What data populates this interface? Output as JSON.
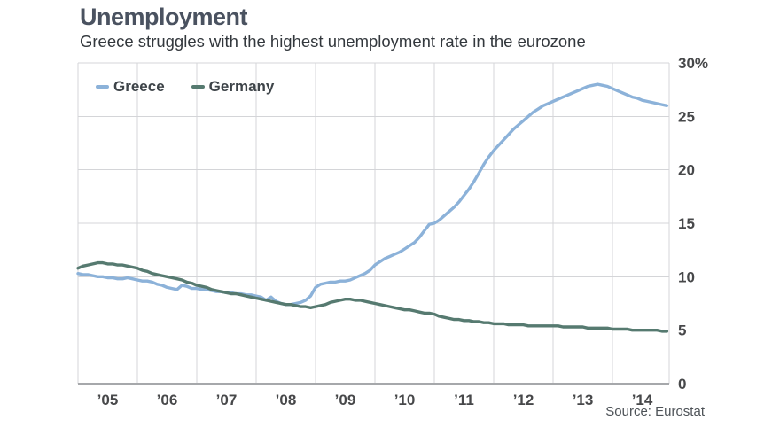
{
  "header": {
    "title": "Unemployment",
    "subtitle": "Greece struggles with the highest unemployment rate in the eurozone"
  },
  "footer": {
    "source": "Source: Eurostat"
  },
  "colors": {
    "greece_line": "#8cb2d9",
    "germany_line": "#567a70",
    "grid": "#d4d5d8",
    "axis": "#a6a8ab",
    "tick_text": "#47484a",
    "title_text": "#4a5260",
    "subtitle_text": "#33383d"
  },
  "chart_data": {
    "type": "line",
    "title": "Unemployment",
    "subtitle": "Greece struggles with the highest unemployment rate in the eurozone",
    "unit": "%",
    "x_start_year": 2005,
    "x_end_year": 2014,
    "x_tick_labels": [
      "’05",
      "’06",
      "’07",
      "’08",
      "’09",
      "’10",
      "’11",
      "’12",
      "’13",
      "’14"
    ],
    "y_ticks": [
      0,
      5,
      10,
      15,
      20,
      25,
      30
    ],
    "y_tick_labels": [
      "0",
      "5",
      "10",
      "15",
      "20",
      "25",
      "30%"
    ],
    "ylim": [
      0,
      30
    ],
    "grid": true,
    "legend_position": "top-left",
    "source_note": "Source: Eurostat",
    "series": [
      {
        "name": "Greece",
        "color": "#8cb2d9",
        "frequency": "monthly",
        "monthly_values": [
          10.3,
          10.2,
          10.2,
          10.1,
          10.0,
          10.0,
          9.9,
          9.9,
          9.8,
          9.8,
          9.9,
          9.8,
          9.7,
          9.6,
          9.6,
          9.5,
          9.3,
          9.2,
          9.0,
          8.9,
          8.8,
          9.2,
          9.1,
          8.9,
          8.9,
          8.8,
          8.8,
          8.7,
          8.6,
          8.6,
          8.5,
          8.5,
          8.4,
          8.4,
          8.3,
          8.3,
          8.2,
          8.1,
          7.8,
          8.1,
          7.7,
          7.5,
          7.4,
          7.4,
          7.5,
          7.6,
          7.8,
          8.2,
          9.0,
          9.3,
          9.4,
          9.5,
          9.5,
          9.6,
          9.6,
          9.7,
          9.9,
          10.1,
          10.3,
          10.6,
          11.1,
          11.4,
          11.7,
          11.9,
          12.1,
          12.3,
          12.6,
          12.9,
          13.2,
          13.7,
          14.3,
          14.9,
          15.0,
          15.3,
          15.7,
          16.1,
          16.5,
          17.0,
          17.6,
          18.2,
          18.9,
          19.7,
          20.5,
          21.2,
          21.8,
          22.3,
          22.8,
          23.3,
          23.8,
          24.2,
          24.6,
          25.0,
          25.4,
          25.7,
          26.0,
          26.2,
          26.4,
          26.6,
          26.8,
          27.0,
          27.2,
          27.4,
          27.6,
          27.8,
          27.9,
          28.0,
          27.9,
          27.8,
          27.6,
          27.4,
          27.2,
          27.0,
          26.8,
          26.7,
          26.5,
          26.4,
          26.3,
          26.2,
          26.1,
          26.0
        ]
      },
      {
        "name": "Germany",
        "color": "#567a70",
        "frequency": "monthly",
        "monthly_values": [
          10.8,
          11.0,
          11.1,
          11.2,
          11.3,
          11.3,
          11.2,
          11.2,
          11.1,
          11.1,
          11.0,
          10.9,
          10.8,
          10.6,
          10.5,
          10.3,
          10.2,
          10.1,
          10.0,
          9.9,
          9.8,
          9.7,
          9.5,
          9.4,
          9.2,
          9.1,
          9.0,
          8.8,
          8.7,
          8.6,
          8.5,
          8.4,
          8.4,
          8.3,
          8.2,
          8.1,
          8.0,
          7.9,
          7.8,
          7.7,
          7.6,
          7.5,
          7.4,
          7.4,
          7.3,
          7.2,
          7.2,
          7.1,
          7.2,
          7.3,
          7.4,
          7.6,
          7.7,
          7.8,
          7.9,
          7.9,
          7.8,
          7.8,
          7.7,
          7.6,
          7.5,
          7.4,
          7.3,
          7.2,
          7.1,
          7.0,
          6.9,
          6.9,
          6.8,
          6.7,
          6.6,
          6.6,
          6.5,
          6.3,
          6.2,
          6.1,
          6.0,
          6.0,
          5.9,
          5.9,
          5.8,
          5.8,
          5.7,
          5.7,
          5.6,
          5.6,
          5.6,
          5.5,
          5.5,
          5.5,
          5.5,
          5.4,
          5.4,
          5.4,
          5.4,
          5.4,
          5.4,
          5.4,
          5.3,
          5.3,
          5.3,
          5.3,
          5.3,
          5.2,
          5.2,
          5.2,
          5.2,
          5.2,
          5.1,
          5.1,
          5.1,
          5.1,
          5.0,
          5.0,
          5.0,
          5.0,
          5.0,
          5.0,
          4.9,
          4.9
        ]
      }
    ]
  }
}
